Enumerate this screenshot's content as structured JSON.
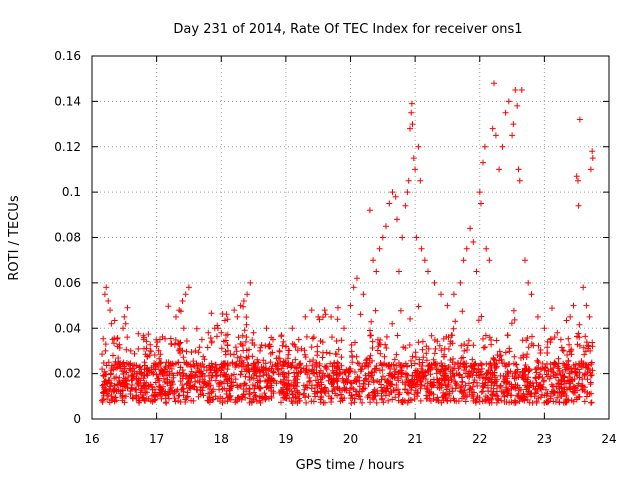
{
  "chart_data": {
    "type": "scatter",
    "title": "Day 231 of 2014, Rate Of TEC Index for receiver ons1",
    "xlabel": "GPS time / hours",
    "ylabel": "ROTI / TECUs",
    "xlim": [
      16,
      24
    ],
    "ylim": [
      0,
      0.16
    ],
    "xticks": [
      "16",
      "17",
      "18",
      "19",
      "20",
      "21",
      "22",
      "23",
      "24"
    ],
    "yticks": [
      "0",
      "0.02",
      "0.04",
      "0.06",
      "0.08",
      "0.1",
      "0.12",
      "0.14",
      "0.16"
    ],
    "grid": true,
    "marker": "+",
    "color": "#ff0000",
    "series": [
      {
        "name": "ROTI",
        "points": [
          [
            16.2,
            0.055
          ],
          [
            16.22,
            0.058
          ],
          [
            16.25,
            0.052
          ],
          [
            16.28,
            0.048
          ],
          [
            16.3,
            0.042
          ],
          [
            16.21,
            0.03
          ],
          [
            16.26,
            0.025
          ],
          [
            16.32,
            0.035
          ],
          [
            16.5,
            0.045
          ],
          [
            16.55,
            0.049
          ],
          [
            16.48,
            0.04
          ],
          [
            16.6,
            0.03
          ],
          [
            16.7,
            0.02
          ],
          [
            16.8,
            0.035
          ],
          [
            16.9,
            0.03
          ],
          [
            17.0,
            0.032
          ],
          [
            17.05,
            0.035
          ],
          [
            17.15,
            0.025
          ],
          [
            17.3,
            0.045
          ],
          [
            17.35,
            0.048
          ],
          [
            17.4,
            0.052
          ],
          [
            17.45,
            0.055
          ],
          [
            17.5,
            0.058
          ],
          [
            17.42,
            0.04
          ],
          [
            17.6,
            0.03
          ],
          [
            17.7,
            0.035
          ],
          [
            17.8,
            0.038
          ],
          [
            17.9,
            0.04
          ],
          [
            17.95,
            0.04
          ],
          [
            18.0,
            0.038
          ],
          [
            18.1,
            0.044
          ],
          [
            18.2,
            0.048
          ],
          [
            18.25,
            0.045
          ],
          [
            18.3,
            0.05
          ],
          [
            18.35,
            0.052
          ],
          [
            18.4,
            0.055
          ],
          [
            18.45,
            0.06
          ],
          [
            18.5,
            0.038
          ],
          [
            18.6,
            0.03
          ],
          [
            18.7,
            0.04
          ],
          [
            18.8,
            0.035
          ],
          [
            18.9,
            0.03
          ],
          [
            19.0,
            0.032
          ],
          [
            19.1,
            0.04
          ],
          [
            19.2,
            0.035
          ],
          [
            19.3,
            0.045
          ],
          [
            19.4,
            0.048
          ],
          [
            19.5,
            0.045
          ],
          [
            19.6,
            0.048
          ],
          [
            19.7,
            0.045
          ],
          [
            19.8,
            0.044
          ],
          [
            19.9,
            0.04
          ],
          [
            20.0,
            0.05
          ],
          [
            20.05,
            0.058
          ],
          [
            20.1,
            0.062
          ],
          [
            20.2,
            0.055
          ],
          [
            20.3,
            0.092
          ],
          [
            20.35,
            0.07
          ],
          [
            20.4,
            0.065
          ],
          [
            20.45,
            0.075
          ],
          [
            20.5,
            0.08
          ],
          [
            20.55,
            0.085
          ],
          [
            20.6,
            0.095
          ],
          [
            20.65,
            0.1
          ],
          [
            20.7,
            0.098
          ],
          [
            20.72,
            0.088
          ],
          [
            20.75,
            0.065
          ],
          [
            20.8,
            0.08
          ],
          [
            20.85,
            0.094
          ],
          [
            20.88,
            0.1
          ],
          [
            20.9,
            0.105
          ],
          [
            20.92,
            0.128
          ],
          [
            20.94,
            0.135
          ],
          [
            20.95,
            0.139
          ],
          [
            20.96,
            0.13
          ],
          [
            20.98,
            0.115
          ],
          [
            21.0,
            0.11
          ],
          [
            21.02,
            0.08
          ],
          [
            21.05,
            0.12
          ],
          [
            21.08,
            0.105
          ],
          [
            21.1,
            0.075
          ],
          [
            21.15,
            0.07
          ],
          [
            21.2,
            0.065
          ],
          [
            21.3,
            0.06
          ],
          [
            21.4,
            0.055
          ],
          [
            21.5,
            0.05
          ],
          [
            21.6,
            0.055
          ],
          [
            21.7,
            0.06
          ],
          [
            21.75,
            0.07
          ],
          [
            21.8,
            0.075
          ],
          [
            21.85,
            0.084
          ],
          [
            21.9,
            0.078
          ],
          [
            21.95,
            0.065
          ],
          [
            22.0,
            0.1
          ],
          [
            22.02,
            0.095
          ],
          [
            22.05,
            0.113
          ],
          [
            22.08,
            0.12
          ],
          [
            22.1,
            0.075
          ],
          [
            22.15,
            0.07
          ],
          [
            22.2,
            0.128
          ],
          [
            22.22,
            0.148
          ],
          [
            22.25,
            0.125
          ],
          [
            22.3,
            0.11
          ],
          [
            22.35,
            0.12
          ],
          [
            22.4,
            0.135
          ],
          [
            22.45,
            0.14
          ],
          [
            22.5,
            0.125
          ],
          [
            22.52,
            0.13
          ],
          [
            22.55,
            0.145
          ],
          [
            22.58,
            0.138
          ],
          [
            22.6,
            0.11
          ],
          [
            22.62,
            0.105
          ],
          [
            22.65,
            0.145
          ],
          [
            22.7,
            0.07
          ],
          [
            22.75,
            0.06
          ],
          [
            22.8,
            0.055
          ],
          [
            22.9,
            0.045
          ],
          [
            23.0,
            0.04
          ],
          [
            23.1,
            0.035
          ],
          [
            23.2,
            0.038
          ],
          [
            23.3,
            0.03
          ],
          [
            23.4,
            0.045
          ],
          [
            23.45,
            0.05
          ],
          [
            23.5,
            0.107
          ],
          [
            23.52,
            0.105
          ],
          [
            23.53,
            0.094
          ],
          [
            23.55,
            0.132
          ],
          [
            23.6,
            0.058
          ],
          [
            23.65,
            0.05
          ],
          [
            23.7,
            0.045
          ],
          [
            23.72,
            0.11
          ],
          [
            23.74,
            0.118
          ],
          [
            23.75,
            0.115
          ],
          [
            16.4,
            0.015
          ],
          [
            17.2,
            0.012
          ],
          [
            18.6,
            0.01
          ],
          [
            19.8,
            0.014
          ],
          [
            21.2,
            0.012
          ],
          [
            22.6,
            0.011
          ],
          [
            23.4,
            0.013
          ],
          [
            16.3,
            0.01
          ],
          [
            17.8,
            0.008
          ],
          [
            19.2,
            0.009
          ],
          [
            20.6,
            0.011
          ],
          [
            21.9,
            0.008
          ],
          [
            23.1,
            0.01
          ]
        ]
      }
    ]
  }
}
